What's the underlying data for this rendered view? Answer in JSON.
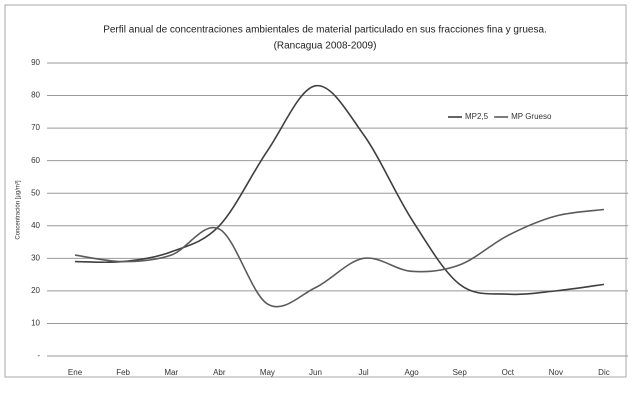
{
  "chart_data": {
    "type": "line",
    "title": "Perfil anual de concentraciones ambientales de material particulado en sus fracciones fina y gruesa.",
    "subtitle": "(Rancagua 2008-2009)",
    "y_label": "Concentración [µg/m³]",
    "categories": [
      "Ene",
      "Feb",
      "Mar",
      "Abr",
      "May",
      "Jun",
      "Jul",
      "Ago",
      "Sep",
      "Oct",
      "Nov",
      "Dic"
    ],
    "series": [
      {
        "name": "MP2,5",
        "color": "#3f3f3f",
        "values": [
          29,
          29,
          32,
          40,
          63,
          83,
          68,
          42,
          22,
          19,
          20,
          22
        ]
      },
      {
        "name": "MP Grueso",
        "color": "#5a5a5a",
        "values": [
          31,
          29,
          31,
          39,
          16,
          21,
          30,
          26,
          28,
          37,
          43,
          45
        ]
      }
    ],
    "ylim": [
      0,
      90
    ],
    "yticks": [
      {
        "value": 0,
        "label": "-"
      },
      10,
      20,
      30,
      40,
      50,
      60,
      70,
      80,
      90
    ],
    "grid": true,
    "legend": "upper right"
  }
}
